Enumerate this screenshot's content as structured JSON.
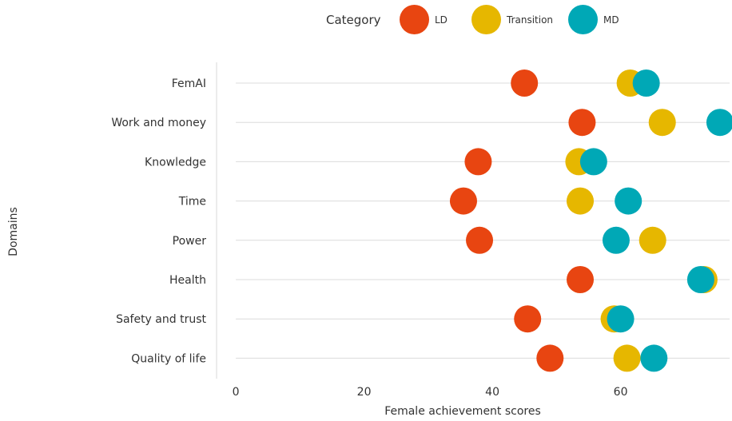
{
  "chart_data": {
    "type": "scatter",
    "ylabel": "Domains",
    "xlabel": "Female achievement scores",
    "xlim": [
      -3,
      77
    ],
    "xticks": [
      0,
      20,
      40,
      60
    ],
    "grid": "horizontal",
    "legend": {
      "title": "Category",
      "placement": "top-center"
    },
    "categories": [
      "FemAI",
      "Work and money",
      "Knowledge",
      "Time",
      "Power",
      "Health",
      "Safety and trust",
      "Quality of life"
    ],
    "series": [
      {
        "name": "LD",
        "color": "#e84511",
        "values": [
          45,
          54,
          37.8,
          35.5,
          38,
          53.7,
          45.5,
          49
        ]
      },
      {
        "name": "Transition",
        "color": "#e6b700",
        "values": [
          61.5,
          66.5,
          53.5,
          53.7,
          65,
          73,
          59,
          61
        ]
      },
      {
        "name": "MD",
        "color": "#00a8b6",
        "values": [
          64,
          75.5,
          55.8,
          61.2,
          59.3,
          72.5,
          60,
          65.2
        ]
      }
    ]
  }
}
